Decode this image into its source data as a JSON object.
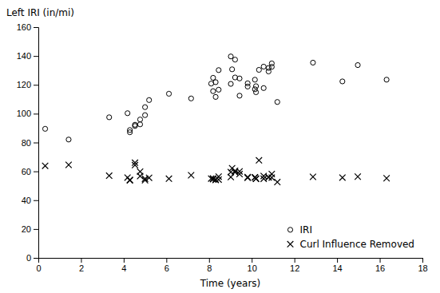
{
  "chart_data": {
    "type": "scatter",
    "xlabel": "Time (years)",
    "ylabel": "Left IRI (in/mi)",
    "x": [
      0.32,
      1.42,
      3.32,
      4.18,
      4.29,
      4.29,
      4.53,
      4.53,
      4.77,
      4.77,
      5.0,
      5.0,
      5.19,
      6.12,
      7.16,
      8.1,
      8.19,
      8.19,
      8.31,
      8.31,
      8.45,
      8.45,
      9.02,
      9.02,
      9.08,
      9.22,
      9.22,
      9.43,
      9.43,
      9.81,
      9.81,
      10.15,
      10.15,
      10.2,
      10.2,
      10.34,
      10.56,
      10.56,
      10.79,
      10.79,
      10.94,
      10.94,
      11.2,
      12.87,
      14.25,
      14.97,
      16.32
    ],
    "series": [
      {
        "name": "IRI",
        "color": "black",
        "marker": "circle",
        "values": [
          89.49,
          82.06,
          97.5,
          100.33,
          88.65,
          87.11,
          92.31,
          91.47,
          95.95,
          92.58,
          104.52,
          98.97,
          109.43,
          113.82,
          110.55,
          120.84,
          124.87,
          115.61,
          121.85,
          111.61,
          130.21,
          116.62,
          139.68,
          120.66,
          130.76,
          137.48,
          125.11,
          124.43,
          112.46,
          121.07,
          118.81,
          123.55,
          116.92,
          119.05,
          114.87,
          130.38,
          132.62,
          117.75,
          131.68,
          129.27,
          134.87,
          132.48,
          108.11,
          135.38,
          122.38,
          133.68,
          123.57
        ]
      },
      {
        "name": "Curl Influence Removed",
        "color": "black",
        "marker": "x",
        "values": [
          63.86,
          64.49,
          57.0,
          55.7,
          53.76,
          54.08,
          64.31,
          65.99,
          56.73,
          59.85,
          54.88,
          53.84,
          55.54,
          54.93,
          57.29,
          55.01,
          55.06,
          54.58,
          54.03,
          54.39,
          56.37,
          54.31,
          59.46,
          56.02,
          62.19,
          59.43,
          60.41,
          58.1,
          59.95,
          55.49,
          55.99,
          55.76,
          55.92,
          54.84,
          54.89,
          67.64,
          56.77,
          54.88,
          56.02,
          55.72,
          58.17,
          55.68,
          52.54,
          56.18,
          55.69,
          56.34,
          55.21
        ]
      }
    ],
    "xlim": [
      0,
      18
    ],
    "ylim": [
      0,
      160
    ],
    "xticks": [
      0,
      2,
      4,
      6,
      8,
      10,
      12,
      14,
      16,
      18
    ],
    "yticks": [
      0,
      20,
      40,
      60,
      80,
      100,
      120,
      140,
      160
    ],
    "legend": "lower right",
    "grid": false
  }
}
